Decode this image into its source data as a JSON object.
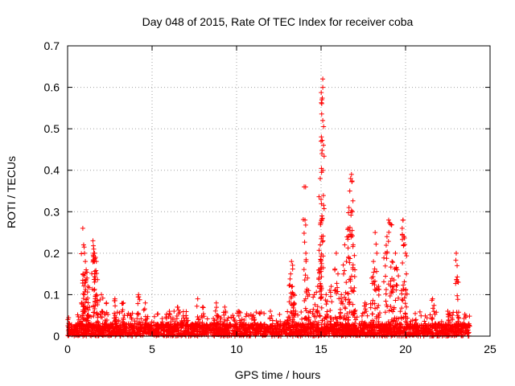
{
  "chart_data": {
    "type": "scatter",
    "title": "Day 048 of 2015, Rate Of TEC Index for receiver coba",
    "xlabel": "GPS time / hours",
    "ylabel": "ROTI / TECUs",
    "xlim": [
      0,
      25
    ],
    "ylim": [
      0,
      0.7
    ],
    "x_ticks": [
      "0",
      "5",
      "10",
      "15",
      "20",
      "25"
    ],
    "y_ticks": [
      "0",
      "0.1",
      "0.2",
      "0.3",
      "0.4",
      "0.5",
      "0.6",
      "0.7"
    ],
    "grid": true,
    "marker": "+",
    "color": "#ff0000",
    "background_band": {
      "x_range": [
        0,
        23.8
      ],
      "base_max": 0.03,
      "burst_max": 0.06
    },
    "series": [
      {
        "name": "ROTI",
        "points": [
          [
            0.9,
            0.26
          ],
          [
            0.95,
            0.22
          ],
          [
            1.0,
            0.2
          ],
          [
            1.05,
            0.18
          ],
          [
            1.1,
            0.16
          ],
          [
            1.15,
            0.14
          ],
          [
            1.2,
            0.12
          ],
          [
            1.0,
            0.1
          ],
          [
            0.85,
            0.08
          ],
          [
            1.3,
            0.07
          ],
          [
            1.5,
            0.23
          ],
          [
            1.55,
            0.21
          ],
          [
            1.6,
            0.2
          ],
          [
            1.65,
            0.19
          ],
          [
            1.7,
            0.18
          ],
          [
            1.6,
            0.15
          ],
          [
            1.7,
            0.1
          ],
          [
            1.75,
            0.08
          ],
          [
            2.0,
            0.1
          ],
          [
            2.3,
            0.08
          ],
          [
            2.8,
            0.09
          ],
          [
            3.3,
            0.08
          ],
          [
            4.2,
            0.1
          ],
          [
            4.6,
            0.08
          ],
          [
            6.3,
            0.06
          ],
          [
            6.5,
            0.07
          ],
          [
            7.7,
            0.09
          ],
          [
            8.0,
            0.07
          ],
          [
            8.8,
            0.08
          ],
          [
            9.3,
            0.07
          ],
          [
            10.1,
            0.06
          ],
          [
            11.0,
            0.05
          ],
          [
            12.0,
            0.06
          ],
          [
            13.2,
            0.15
          ],
          [
            13.25,
            0.18
          ],
          [
            13.3,
            0.12
          ],
          [
            13.35,
            0.1
          ],
          [
            13.4,
            0.08
          ],
          [
            14.0,
            0.36
          ],
          [
            14.05,
            0.28
          ],
          [
            14.1,
            0.2
          ],
          [
            14.2,
            0.14
          ],
          [
            14.3,
            0.1
          ],
          [
            14.6,
            0.1
          ],
          [
            14.8,
            0.12
          ],
          [
            14.9,
            0.16
          ],
          [
            14.95,
            0.22
          ],
          [
            15.0,
            0.33
          ],
          [
            14.95,
            0.38
          ],
          [
            15.05,
            0.44
          ],
          [
            15.0,
            0.47
          ],
          [
            15.1,
            0.52
          ],
          [
            15.05,
            0.57
          ],
          [
            15.1,
            0.6
          ],
          [
            15.1,
            0.62
          ],
          [
            15.05,
            0.29
          ],
          [
            15.3,
            0.1
          ],
          [
            15.6,
            0.12
          ],
          [
            15.9,
            0.2
          ],
          [
            16.0,
            0.15
          ],
          [
            16.2,
            0.1
          ],
          [
            16.4,
            0.22
          ],
          [
            16.5,
            0.18
          ],
          [
            16.6,
            0.26
          ],
          [
            16.65,
            0.31
          ],
          [
            16.7,
            0.35
          ],
          [
            16.75,
            0.38
          ],
          [
            16.8,
            0.39
          ],
          [
            16.85,
            0.3
          ],
          [
            16.9,
            0.22
          ],
          [
            17.0,
            0.16
          ],
          [
            17.6,
            0.08
          ],
          [
            18.0,
            0.14
          ],
          [
            18.1,
            0.18
          ],
          [
            18.2,
            0.25
          ],
          [
            18.3,
            0.2
          ],
          [
            18.4,
            0.12
          ],
          [
            18.8,
            0.2
          ],
          [
            18.9,
            0.24
          ],
          [
            19.0,
            0.28
          ],
          [
            19.1,
            0.27
          ],
          [
            19.2,
            0.18
          ],
          [
            19.3,
            0.12
          ],
          [
            19.4,
            0.2
          ],
          [
            19.5,
            0.16
          ],
          [
            19.8,
            0.26
          ],
          [
            19.85,
            0.28
          ],
          [
            19.9,
            0.24
          ],
          [
            20.0,
            0.2
          ],
          [
            20.05,
            0.15
          ],
          [
            21.6,
            0.09
          ],
          [
            22.5,
            0.06
          ],
          [
            23.0,
            0.2
          ],
          [
            23.05,
            0.17
          ]
        ]
      }
    ]
  }
}
